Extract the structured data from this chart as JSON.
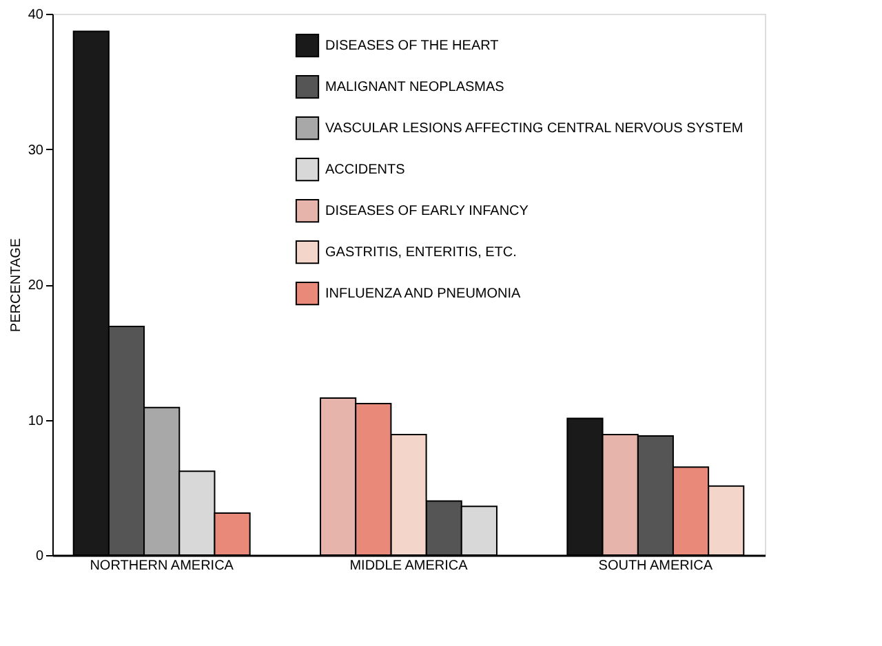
{
  "chart_data": {
    "type": "bar",
    "ylabel": "PERCENTAGE",
    "categories": [
      null,
      null,
      "NORTHERN AMERICA",
      null,
      null,
      null,
      null,
      null,
      null,
      "MIDDLE AMERICA",
      null,
      null,
      null,
      null,
      null,
      null,
      "SOUTH AMERICA",
      null,
      null
    ],
    "series": [
      {
        "name": "DISEASES OF THE HEART",
        "color": "#1a1a1a",
        "values": [
          38.7,
          null,
          null,
          null,
          null,
          null,
          null,
          null,
          null,
          null,
          null,
          null,
          null,
          null,
          10.1,
          null,
          null,
          null,
          null
        ]
      },
      {
        "name": "MALIGNANT NEOPLASMAS",
        "color": "#555555",
        "values": [
          null,
          16.9,
          null,
          null,
          null,
          null,
          null,
          null,
          null,
          null,
          4.0,
          null,
          null,
          null,
          null,
          null,
          8.8,
          null,
          null
        ]
      },
      {
        "name": "VASCULAR LESIONS AFFECTING CENTRAL NERVOUS SYSTEM",
        "color": "#a8a8a8",
        "values": [
          null,
          null,
          10.9,
          null,
          null,
          null,
          null,
          null,
          null,
          null,
          null,
          null,
          null,
          null,
          null,
          null,
          null,
          null,
          null
        ]
      },
      {
        "name": "ACCIDENTS",
        "color": "#d8d8d8",
        "values": [
          null,
          null,
          null,
          6.2,
          null,
          null,
          null,
          null,
          null,
          null,
          null,
          3.6,
          null,
          null,
          null,
          null,
          null,
          null,
          null
        ]
      },
      {
        "name": "DISEASES OF EARLY INFANCY",
        "color": "#e6b4aa",
        "values": [
          null,
          null,
          null,
          null,
          null,
          null,
          null,
          11.6,
          null,
          null,
          null,
          null,
          null,
          null,
          null,
          8.9,
          null,
          null,
          null
        ]
      },
      {
        "name": "GASTRITIS, ENTERITIS, ETC.",
        "color": "#f3d6c9",
        "values": [
          null,
          null,
          null,
          null,
          null,
          null,
          null,
          null,
          null,
          8.9,
          null,
          null,
          null,
          null,
          null,
          null,
          null,
          null,
          5.1
        ]
      },
      {
        "name": "INFLUENZA AND PNEUMONIA",
        "color": "#e8897a",
        "values": [
          null,
          null,
          null,
          null,
          3.1,
          null,
          null,
          null,
          11.2,
          null,
          null,
          null,
          null,
          null,
          null,
          null,
          null,
          6.5,
          null
        ]
      }
    ],
    "ylim": [
      0,
      40
    ],
    "yticks": [
      0,
      10,
      20,
      30,
      40
    ],
    "grid": false,
    "legend": "top right"
  }
}
